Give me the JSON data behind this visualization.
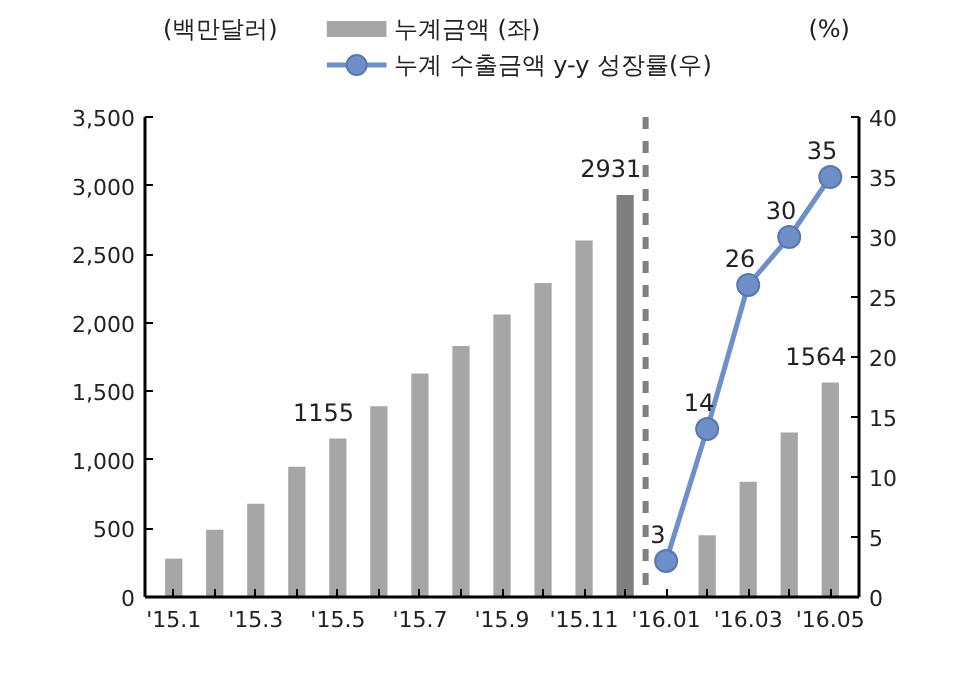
{
  "chart_data": {
    "type": "bar",
    "ylabel": "(백만달러)",
    "y2label": "(%)",
    "categories": [
      "'15.1",
      null,
      "'15.3",
      null,
      "'15.5",
      null,
      "'15.7",
      null,
      "'15.9",
      null,
      "'15.11",
      null,
      "'16.01",
      null,
      "'16.03",
      null,
      "'16.05"
    ],
    "series": [
      {
        "name": "누계금액 (좌)",
        "color": "#a6a6a6",
        "colors": [
          "#a6a6a6",
          "#a6a6a6",
          "#a6a6a6",
          "#a6a6a6",
          "#a6a6a6",
          "#a6a6a6",
          "#a6a6a6",
          "#a6a6a6",
          "#a6a6a6",
          "#a6a6a6",
          "#a6a6a6",
          "#7f7f7f",
          "#a6a6a6",
          "#a6a6a6",
          "#a6a6a6",
          "#a6a6a6",
          "#a6a6a6"
        ],
        "values": [
          280,
          490,
          680,
          950,
          1155,
          1390,
          1630,
          1830,
          2060,
          2290,
          2600,
          2931,
          null,
          450,
          840,
          1200,
          1564
        ],
        "value_labels": [
          null,
          null,
          null,
          null,
          "1155",
          null,
          null,
          null,
          null,
          null,
          null,
          "2931",
          null,
          null,
          null,
          null,
          "1564"
        ]
      },
      {
        "name": "누계 수출금액 y-y 성장률(우)",
        "type": "line",
        "axis": "y2",
        "color": "#6f8fc8",
        "marker": "circle",
        "values": [
          null,
          null,
          null,
          null,
          null,
          null,
          null,
          null,
          null,
          null,
          null,
          null,
          3,
          14,
          26,
          30,
          35
        ],
        "value_labels": [
          null,
          null,
          null,
          null,
          null,
          null,
          null,
          null,
          null,
          null,
          null,
          null,
          "3",
          "14",
          "26",
          "30",
          "35"
        ]
      }
    ],
    "ylim": [
      0,
      3500
    ],
    "yticks": [
      {
        "value": 0,
        "label": "0"
      },
      {
        "value": 500,
        "label": "500"
      },
      {
        "value": 1000,
        "label": "1,000"
      },
      {
        "value": 1500,
        "label": "1,500"
      },
      {
        "value": 2000,
        "label": "2,000"
      },
      {
        "value": 2500,
        "label": "2,500"
      },
      {
        "value": 3000,
        "label": "3,000"
      },
      {
        "value": 3500,
        "label": "3,500"
      }
    ],
    "y2lim": [
      0,
      40
    ],
    "y2ticks": [
      0,
      5,
      10,
      15,
      20,
      25,
      30,
      35,
      40
    ],
    "grid": false,
    "legend": "top"
  }
}
